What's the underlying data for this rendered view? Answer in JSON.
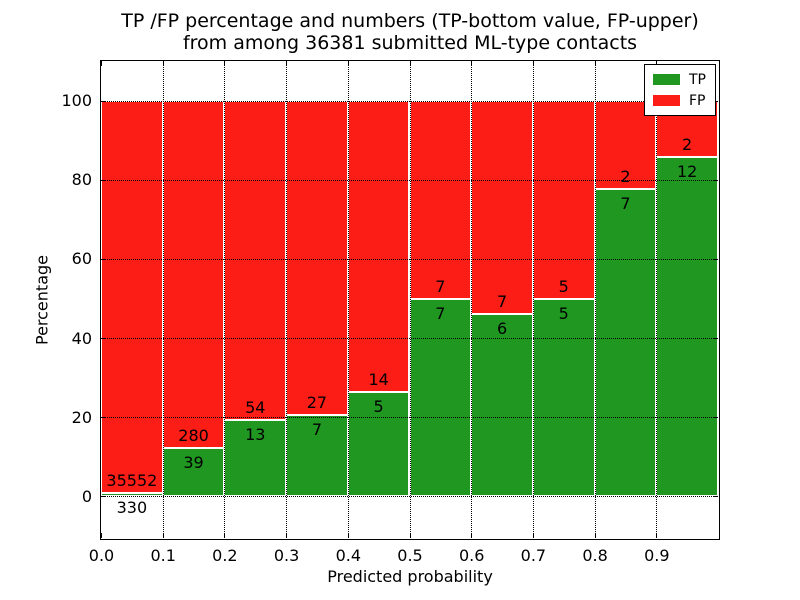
{
  "chart_data": {
    "type": "bar",
    "stacked": true,
    "normalized_to_percent": true,
    "title_line1": "TP /FP percentage and numbers (TP-bottom value, FP-upper)",
    "title_line2": "from among 36381 submitted ML-type contacts",
    "xlabel": "Predicted probability",
    "ylabel": "Percentage",
    "total_contacts": 36381,
    "x_tick_labels": [
      "0.0",
      "0.1",
      "0.2",
      "0.3",
      "0.4",
      "0.5",
      "0.6",
      "0.7",
      "0.8",
      "0.9"
    ],
    "x_tick_values": [
      0.0,
      0.1,
      0.2,
      0.3,
      0.4,
      0.5,
      0.6,
      0.7,
      0.8,
      0.9
    ],
    "y_tick_values": [
      0,
      20,
      40,
      60,
      80,
      100
    ],
    "xlim": [
      0.0,
      1.0
    ],
    "ylim": [
      -10.5,
      110
    ],
    "grid": {
      "visible": true,
      "style": "dotted",
      "color": "#000000"
    },
    "bins": [
      {
        "range": [
          0.0,
          0.1
        ],
        "tp": 330,
        "fp": 35552,
        "tp_percent": 0.92,
        "fp_percent": 99.08
      },
      {
        "range": [
          0.1,
          0.2
        ],
        "tp": 39,
        "fp": 280,
        "tp_percent": 12.23,
        "fp_percent": 87.77
      },
      {
        "range": [
          0.2,
          0.3
        ],
        "tp": 13,
        "fp": 54,
        "tp_percent": 19.4,
        "fp_percent": 80.6
      },
      {
        "range": [
          0.3,
          0.4
        ],
        "tp": 7,
        "fp": 27,
        "tp_percent": 20.59,
        "fp_percent": 79.41
      },
      {
        "range": [
          0.4,
          0.5
        ],
        "tp": 5,
        "fp": 14,
        "tp_percent": 26.32,
        "fp_percent": 73.68
      },
      {
        "range": [
          0.5,
          0.6
        ],
        "tp": 7,
        "fp": 7,
        "tp_percent": 50.0,
        "fp_percent": 50.0
      },
      {
        "range": [
          0.6,
          0.7
        ],
        "tp": 6,
        "fp": 7,
        "tp_percent": 46.15,
        "fp_percent": 53.85
      },
      {
        "range": [
          0.7,
          0.8
        ],
        "tp": 5,
        "fp": 5,
        "tp_percent": 50.0,
        "fp_percent": 50.0
      },
      {
        "range": [
          0.8,
          0.9
        ],
        "tp": 7,
        "fp": 2,
        "tp_percent": 77.78,
        "fp_percent": 22.22
      },
      {
        "range": [
          0.9,
          1.0
        ],
        "tp": 12,
        "fp": 2,
        "tp_percent": 85.71,
        "fp_percent": 14.29
      }
    ],
    "series": [
      {
        "name": "TP",
        "color": "#1f9721"
      },
      {
        "name": "FP",
        "color": "#fc1d17"
      }
    ],
    "legend": {
      "position": "upper right",
      "entries": [
        {
          "label": "TP",
          "color": "#1f9721"
        },
        {
          "label": "FP",
          "color": "#fc1d17"
        }
      ]
    }
  }
}
